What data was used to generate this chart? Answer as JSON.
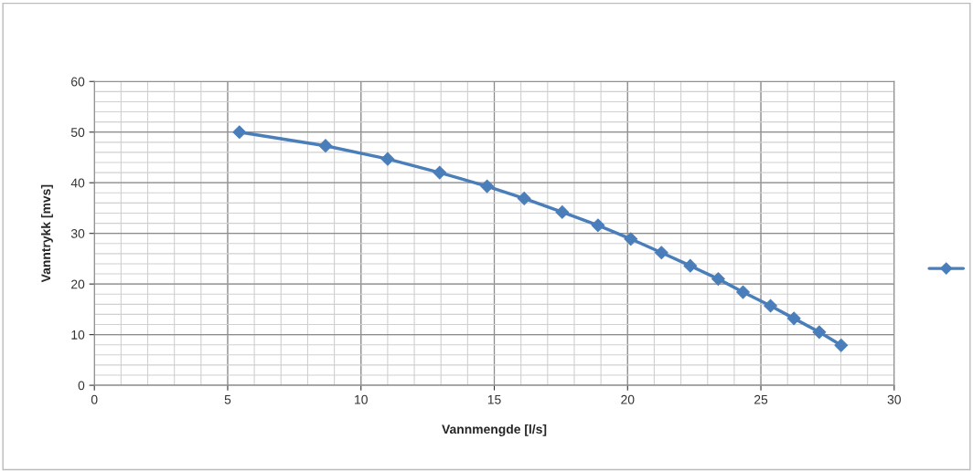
{
  "chart_data": {
    "type": "line",
    "xlabel": "Vannmengde [l/s]",
    "ylabel": "Vanntrykk [mvs]",
    "xlim": [
      0,
      30
    ],
    "xticks": [
      0,
      5,
      10,
      15,
      20,
      25,
      30
    ],
    "ylim": [
      0,
      60
    ],
    "yticks": [
      0,
      10,
      20,
      30,
      40,
      50,
      60
    ],
    "grid": true,
    "marker": "diamond",
    "line_style": "solid",
    "series": [
      {
        "color": "#4a7ebb",
        "x": [
          5.44,
          8.67,
          11.0,
          12.95,
          14.73,
          16.12,
          17.55,
          18.89,
          20.12,
          21.27,
          22.35,
          23.4,
          24.33,
          25.36,
          26.24,
          27.19,
          28.01
        ],
        "values": [
          50.0,
          47.3,
          44.7,
          42.0,
          39.3,
          36.9,
          34.2,
          31.6,
          28.9,
          26.2,
          23.6,
          21.0,
          18.4,
          15.7,
          13.2,
          10.5,
          7.9
        ]
      }
    ]
  }
}
